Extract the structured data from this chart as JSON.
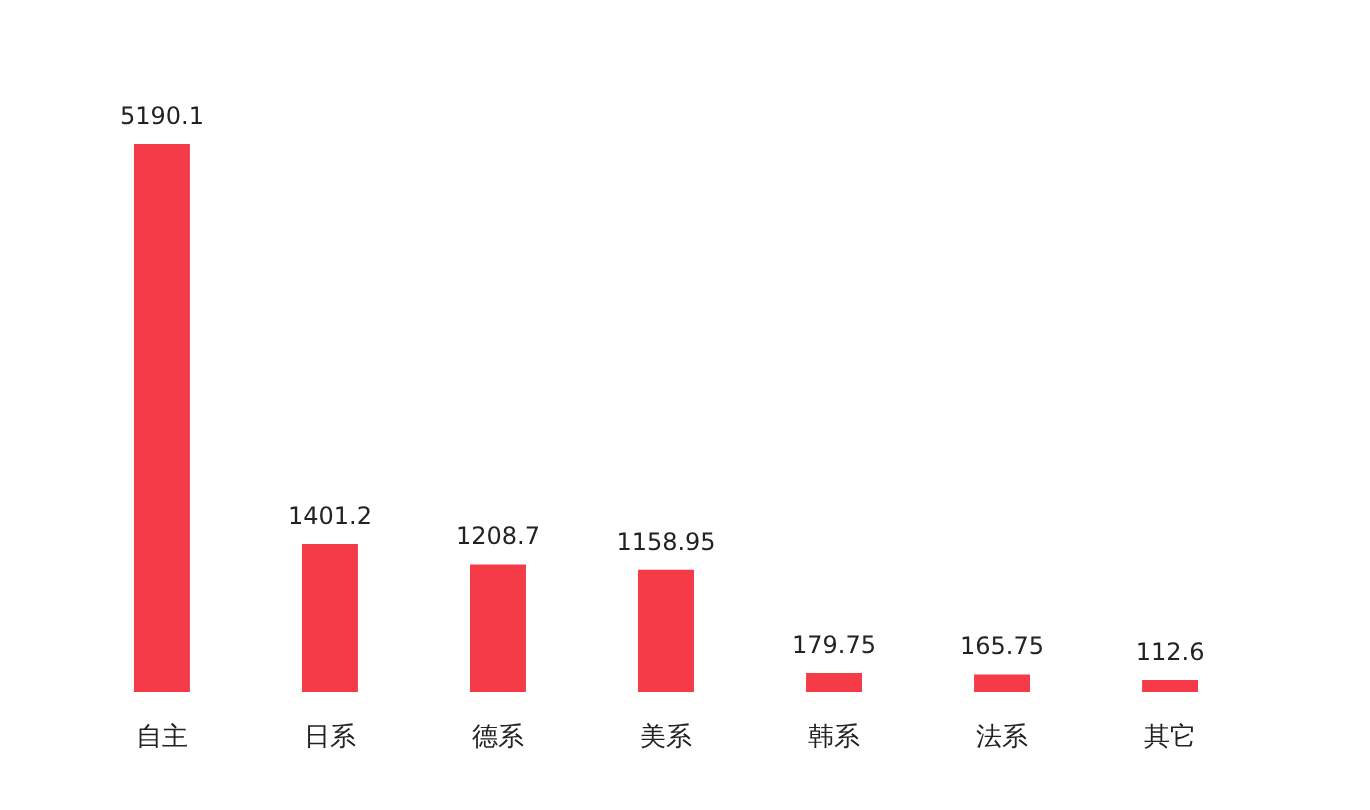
{
  "chart_data": {
    "type": "bar",
    "categories": [
      "自主",
      "日系",
      "德系",
      "美系",
      "韩系",
      "法系",
      "其它"
    ],
    "values": [
      5190.1,
      1401.2,
      1208.7,
      1158.95,
      179.75,
      165.75,
      112.6
    ],
    "color": "#f53b47",
    "data_labels": true
  }
}
